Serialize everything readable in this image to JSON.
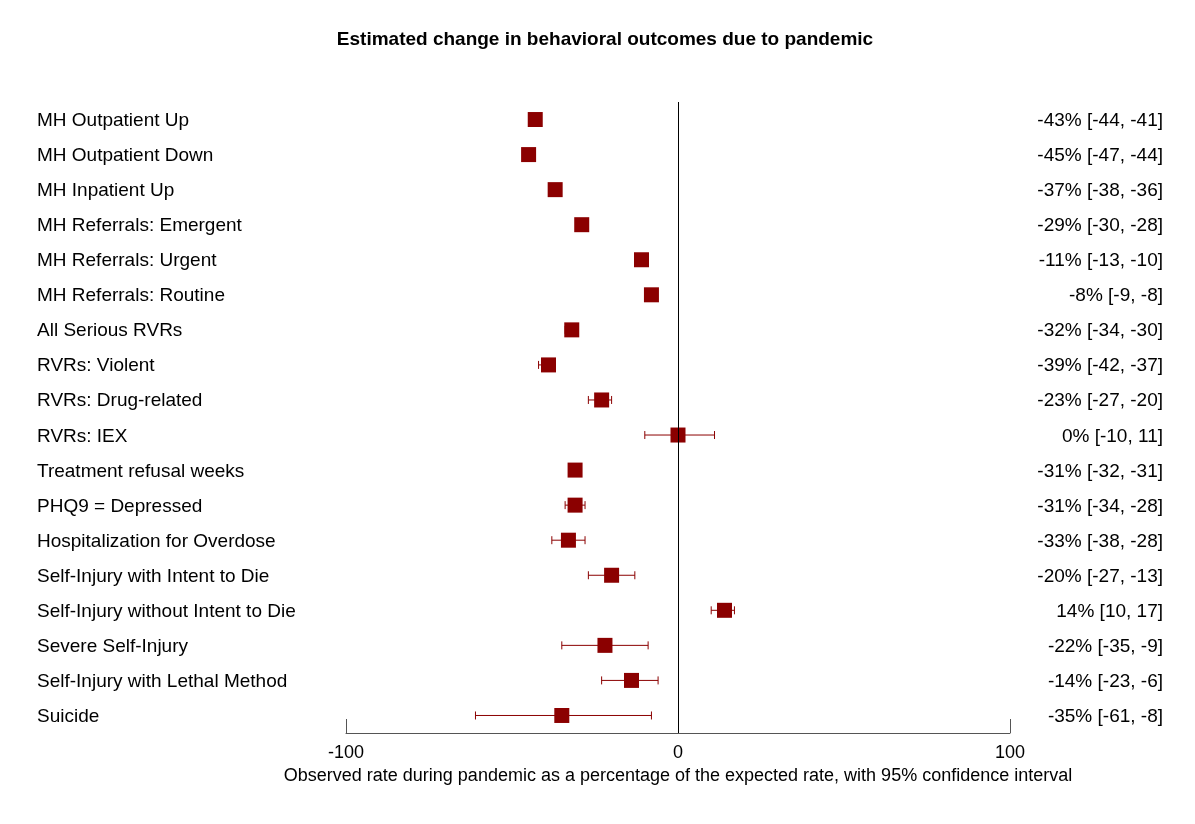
{
  "chart_data": {
    "type": "scatter",
    "orientation": "horizontal",
    "title": "Estimated change in behavioral outcomes due to pandemic",
    "xlabel": "Observed rate during pandemic as a percentage of the expected rate, with 95% confidence interval",
    "categories": [
      "MH Outpatient Up",
      "MH Outpatient Down",
      "MH Inpatient Up",
      "MH Referrals: Emergent",
      "MH Referrals: Urgent",
      "MH Referrals: Routine",
      "All Serious RVRs",
      "RVRs: Violent",
      "RVRs: Drug-related",
      "RVRs: IEX",
      "Treatment refusal weeks",
      "PHQ9 = Depressed",
      "Hospitalization for Overdose",
      "Self-Injury with Intent to Die",
      "Self-Injury without Intent to Die",
      "Severe Self-Injury",
      "Self-Injury with Lethal Method",
      "Suicide"
    ],
    "values": [
      -43,
      -45,
      -37,
      -29,
      -11,
      -8,
      -32,
      -39,
      -23,
      0,
      -31,
      -31,
      -33,
      -20,
      14,
      -22,
      -14,
      -35
    ],
    "errors": [
      null,
      null,
      null,
      null,
      null,
      null,
      [
        -34,
        -30
      ],
      [
        -42,
        -37
      ],
      [
        -27,
        -20
      ],
      [
        -10,
        11
      ],
      null,
      [
        -34,
        -28
      ],
      [
        -38,
        -28
      ],
      [
        -27,
        -13
      ],
      [
        10,
        17
      ],
      [
        -35,
        -9
      ],
      [
        -23,
        -6
      ],
      [
        -61,
        -8
      ]
    ],
    "value_labels": [
      "-43% [-44, -41]",
      "-45% [-47, -44]",
      "-37% [-38, -36]",
      "-29% [-30, -28]",
      "-11% [-13, -10]",
      "-8% [-9, -8]",
      "-32% [-34, -30]",
      "-39% [-42, -37]",
      "-23% [-27, -20]",
      "0% [-10, 11]",
      "-31% [-32, -31]",
      "-31% [-34, -28]",
      "-33% [-38, -28]",
      "-20% [-27, -13]",
      "14% [10, 17]",
      "-22% [-35, -9]",
      "-14% [-23, -6]",
      "-35% [-61, -8]"
    ],
    "color": "#8b0000",
    "marker": "square",
    "xlim": [
      -100,
      100
    ],
    "xticks": [
      -100,
      0,
      100
    ],
    "grid": false,
    "ref_lines": [
      {
        "axis": "x",
        "value": 0,
        "color": "#000000"
      }
    ]
  }
}
